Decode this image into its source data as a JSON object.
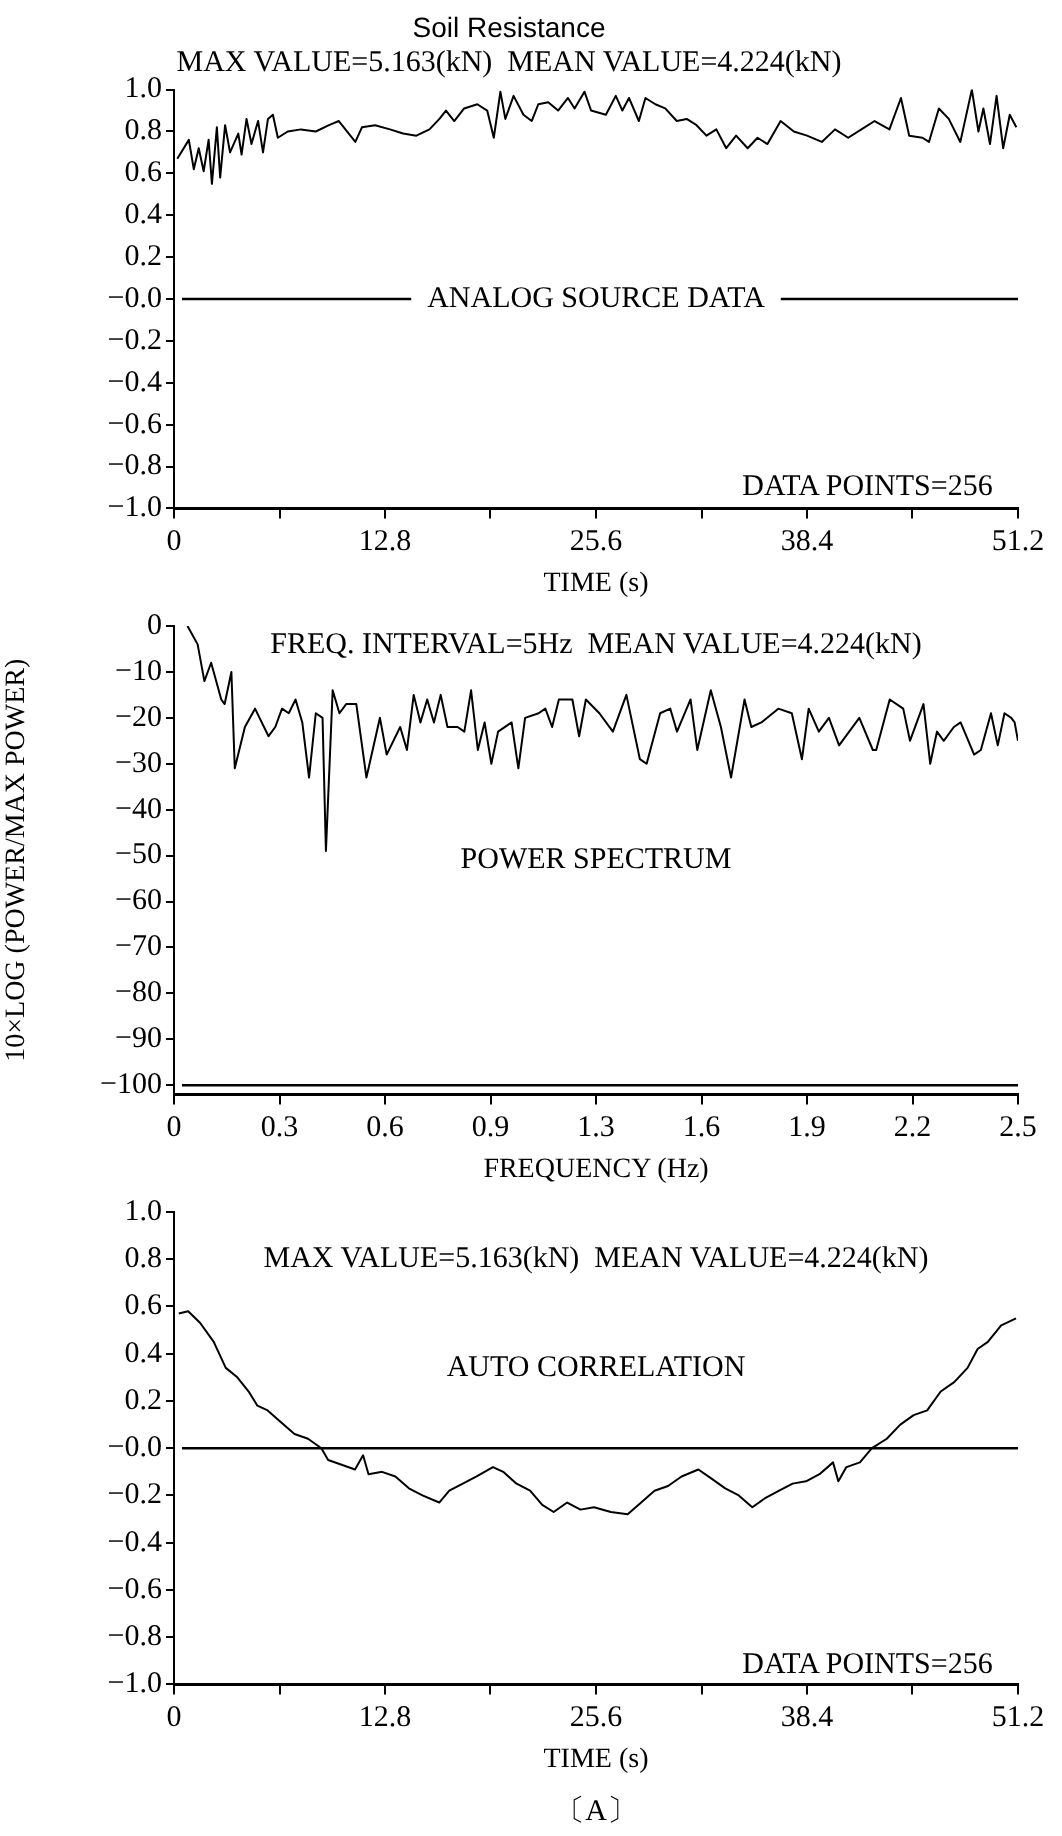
{
  "chart_data": [
    {
      "type": "line",
      "title": "Soil Resistance",
      "subtitle": "MAX VALUE=5.163(kN)  MEAN VALUE=4.224(kN)",
      "xlabel": "TIME (s)",
      "x": [
        0.2,
        0.9,
        1.2,
        1.5,
        1.8,
        2.1,
        2.3,
        2.6,
        2.8,
        3.1,
        3.4,
        3.9,
        4.1,
        4.4,
        4.7,
        5.1,
        5.4,
        5.7,
        6.0,
        6.3,
        6.9,
        7.7,
        8.6,
        9.4,
        10.0,
        11.0,
        11.4,
        12.2,
        13.1,
        13.9,
        14.7,
        15.5,
        16.1,
        16.5,
        17.0,
        17.6,
        18.4,
        19.0,
        19.4,
        19.8,
        20.1,
        20.6,
        21.2,
        21.7,
        22.1,
        22.7,
        23.3,
        23.9,
        24.3,
        24.9,
        25.3,
        26.2,
        26.8,
        27.2,
        27.6,
        28.2,
        28.6,
        29.2,
        29.8,
        30.5,
        31.1,
        31.7,
        32.3,
        32.9,
        33.5,
        34.1,
        34.8,
        35.4,
        36.0,
        36.8,
        37.6,
        38.4,
        39.3,
        40.1,
        40.9,
        41.7,
        42.5,
        43.4,
        44.1,
        44.6,
        45.4,
        45.8,
        46.4,
        47.0,
        47.7,
        48.4,
        48.8,
        49.1,
        49.5,
        49.9,
        50.3,
        50.7,
        51.1
      ],
      "series": [
        {
          "color": "#000000",
          "values": [
            0.67,
            0.76,
            0.62,
            0.72,
            0.61,
            0.76,
            0.55,
            0.82,
            0.58,
            0.83,
            0.7,
            0.79,
            0.69,
            0.86,
            0.74,
            0.85,
            0.7,
            0.86,
            0.88,
            0.77,
            0.8,
            0.81,
            0.8,
            0.83,
            0.85,
            0.75,
            0.82,
            0.83,
            0.81,
            0.79,
            0.78,
            0.81,
            0.86,
            0.9,
            0.85,
            0.91,
            0.93,
            0.9,
            0.77,
            0.99,
            0.86,
            0.97,
            0.88,
            0.85,
            0.93,
            0.94,
            0.9,
            0.96,
            0.91,
            0.99,
            0.9,
            0.88,
            0.97,
            0.9,
            0.96,
            0.85,
            0.96,
            0.93,
            0.91,
            0.85,
            0.86,
            0.83,
            0.78,
            0.81,
            0.72,
            0.78,
            0.72,
            0.77,
            0.74,
            0.85,
            0.8,
            0.78,
            0.75,
            0.81,
            0.77,
            0.81,
            0.85,
            0.81,
            0.96,
            0.78,
            0.77,
            0.75,
            0.91,
            0.86,
            0.75,
            1.0,
            0.8,
            0.91,
            0.74,
            0.97,
            0.72,
            0.88,
            0.82
          ]
        }
      ],
      "xlim": [
        0,
        51.2
      ],
      "xticks": [
        0,
        {
          "value": 6.4,
          "label": null
        },
        12.8,
        {
          "value": 19.2,
          "label": null
        },
        25.6,
        {
          "value": 32,
          "label": null
        },
        38.4,
        {
          "value": 44.8,
          "label": null
        },
        51.2
      ],
      "ylim": [
        -1,
        1
      ],
      "yticks": [
        {
          "value": -1,
          "label": "−1.0"
        },
        {
          "value": -0.8,
          "label": "−0.8"
        },
        {
          "value": -0.6,
          "label": "−0.6"
        },
        {
          "value": -0.4,
          "label": "−0.4"
        },
        {
          "value": -0.2,
          "label": "−0.2"
        },
        {
          "value": 0,
          "label": "−0.0"
        },
        {
          "value": 0.2,
          "label": "0.2"
        },
        {
          "value": 0.4,
          "label": "0.4"
        },
        {
          "value": 0.6,
          "label": "0.6"
        },
        {
          "value": 0.8,
          "label": "0.8"
        },
        {
          "value": 1,
          "label": "1.0"
        }
      ],
      "ref_lines": [
        {
          "axis": "y",
          "value": 0,
          "label": "ANALOG SOURCE DATA"
        }
      ],
      "annotations": [
        "DATA POINTS=256"
      ]
    },
    {
      "type": "line",
      "xlabel": "FREQUENCY (Hz)",
      "ylabel": "10×LOG (POWER/MAX POWER)",
      "x": [
        0.04,
        0.07,
        0.09,
        0.11,
        0.14,
        0.15,
        0.17,
        0.18,
        0.21,
        0.24,
        0.28,
        0.3,
        0.32,
        0.34,
        0.36,
        0.38,
        0.4,
        0.42,
        0.44,
        0.45,
        0.47,
        0.49,
        0.51,
        0.54,
        0.57,
        0.61,
        0.63,
        0.67,
        0.69,
        0.71,
        0.73,
        0.75,
        0.77,
        0.79,
        0.81,
        0.84,
        0.86,
        0.88,
        0.9,
        0.92,
        0.94,
        0.96,
        1.0,
        1.02,
        1.04,
        1.08,
        1.1,
        1.12,
        1.14,
        1.18,
        1.2,
        1.22,
        1.26,
        1.3,
        1.34,
        1.38,
        1.4,
        1.44,
        1.47,
        1.49,
        1.53,
        1.55,
        1.59,
        1.62,
        1.65,
        1.69,
        1.71,
        1.74,
        1.79,
        1.83,
        1.86,
        1.88,
        1.91,
        1.94,
        1.97,
        2.03,
        2.07,
        2.08,
        2.12,
        2.16,
        2.18,
        2.22,
        2.24,
        2.26,
        2.28,
        2.31,
        2.33,
        2.37,
        2.39,
        2.42,
        2.44,
        2.46,
        2.48,
        2.49,
        2.5
      ],
      "series": [
        {
          "color": "#000000",
          "values": [
            0,
            -4,
            -12,
            -8,
            -16,
            -17,
            -10,
            -31,
            -22,
            -18,
            -24,
            -22,
            -18,
            -19,
            -16,
            -21,
            -33,
            -19,
            -20,
            -49,
            -14,
            -19,
            -17,
            -17,
            -33,
            -20,
            -28,
            -22,
            -27,
            -15,
            -21,
            -16,
            -21,
            -15,
            -22,
            -22,
            -23,
            -14,
            -27,
            -21,
            -30,
            -23,
            -21,
            -31,
            -20,
            -19,
            -18,
            -22,
            -16,
            -16,
            -24,
            -16,
            -19,
            -23,
            -15,
            -29,
            -30,
            -19,
            -18,
            -23,
            -16,
            -27,
            -14,
            -22,
            -33,
            -16,
            -22,
            -21,
            -18,
            -19,
            -29,
            -18,
            -23,
            -20,
            -26,
            -20,
            -27,
            -27,
            -16,
            -18,
            -25,
            -17,
            -30,
            -23,
            -25,
            -22,
            -21,
            -28,
            -27,
            -19,
            -26,
            -19,
            -20,
            -21,
            -25
          ]
        }
      ],
      "xlim": [
        0,
        2.5
      ],
      "xticks": [
        0,
        {
          "value": 0.3125,
          "label": "0.3"
        },
        {
          "value": 0.625,
          "label": "0.6"
        },
        {
          "value": 0.9375,
          "label": "0.9"
        },
        {
          "value": 1.25,
          "label": "1.3"
        },
        {
          "value": 1.5625,
          "label": "1.6"
        },
        {
          "value": 1.875,
          "label": "1.9"
        },
        {
          "value": 2.1875,
          "label": "2.2"
        },
        2.5
      ],
      "ylim": [
        -102,
        0
      ],
      "yticks": [
        {
          "value": -100,
          "label": "−100"
        },
        {
          "value": -90,
          "label": "−90"
        },
        {
          "value": -80,
          "label": "−80"
        },
        {
          "value": -70,
          "label": "−70"
        },
        {
          "value": -60,
          "label": "−60"
        },
        {
          "value": -50,
          "label": "−50"
        },
        {
          "value": -40,
          "label": "−40"
        },
        {
          "value": -30,
          "label": "−30"
        },
        {
          "value": -20,
          "label": "−20"
        },
        {
          "value": -10,
          "label": "−10"
        },
        0
      ],
      "ref_lines": [
        {
          "axis": "y",
          "value": -100
        }
      ],
      "annotations": [
        "FREQ. INTERVAL=5Hz  MEAN VALUE=4.224(kN)",
        "POWER SPECTRUM"
      ]
    },
    {
      "type": "line",
      "xlabel": "TIME (s)",
      "x": [
        0.29,
        0.86,
        1.59,
        2.41,
        3.14,
        3.84,
        4.53,
        5.06,
        5.68,
        6.49,
        7.31,
        8.13,
        8.94,
        9.35,
        10.17,
        10.98,
        11.47,
        11.8,
        12.62,
        13.43,
        14.25,
        15.07,
        16.09,
        16.7,
        17.52,
        18.33,
        19.35,
        19.97,
        20.78,
        21.6,
        22.34,
        23.03,
        23.85,
        24.66,
        25.48,
        26.5,
        27.52,
        28.34,
        29.15,
        29.97,
        30.79,
        31.81,
        32.63,
        33.44,
        34.26,
        35.08,
        35.89,
        36.71,
        37.53,
        38.34,
        39.16,
        39.98,
        40.3,
        40.79,
        41.61,
        42.34,
        43.24,
        44.06,
        44.87,
        45.69,
        46.51,
        47.33,
        48.14,
        48.75,
        49.37,
        50.18,
        51.08
      ],
      "series": [
        {
          "color": "#000000",
          "values": [
            0.57,
            0.58,
            0.53,
            0.45,
            0.34,
            0.3,
            0.24,
            0.18,
            0.16,
            0.11,
            0.06,
            0.04,
            0.0,
            -0.05,
            -0.07,
            -0.09,
            -0.03,
            -0.11,
            -0.1,
            -0.12,
            -0.17,
            -0.2,
            -0.23,
            -0.18,
            -0.15,
            -0.12,
            -0.08,
            -0.1,
            -0.15,
            -0.18,
            -0.24,
            -0.27,
            -0.23,
            -0.26,
            -0.25,
            -0.27,
            -0.28,
            -0.23,
            -0.18,
            -0.16,
            -0.12,
            -0.09,
            -0.13,
            -0.17,
            -0.2,
            -0.25,
            -0.21,
            -0.18,
            -0.15,
            -0.14,
            -0.11,
            -0.06,
            -0.14,
            -0.08,
            -0.06,
            0.0,
            0.04,
            0.1,
            0.14,
            0.16,
            0.24,
            0.28,
            0.34,
            0.42,
            0.45,
            0.52,
            0.55
          ]
        }
      ],
      "xlim": [
        0,
        51.2
      ],
      "xticks": [
        0,
        {
          "value": 6.4,
          "label": null
        },
        12.8,
        {
          "value": 19.2,
          "label": null
        },
        25.6,
        {
          "value": 32,
          "label": null
        },
        38.4,
        {
          "value": 44.8,
          "label": null
        },
        51.2
      ],
      "ylim": [
        -1,
        1
      ],
      "yticks": [
        {
          "value": -1,
          "label": "−1.0"
        },
        {
          "value": -0.8,
          "label": "−0.8"
        },
        {
          "value": -0.6,
          "label": "−0.6"
        },
        {
          "value": -0.4,
          "label": "−0.4"
        },
        {
          "value": -0.2,
          "label": "−0.2"
        },
        {
          "value": 0,
          "label": "−0.0"
        },
        {
          "value": 0.2,
          "label": "0.2"
        },
        {
          "value": 0.4,
          "label": "0.4"
        },
        {
          "value": 0.6,
          "label": "0.6"
        },
        {
          "value": 0.8,
          "label": "0.8"
        },
        {
          "value": 1,
          "label": "1.0"
        }
      ],
      "ref_lines": [
        {
          "axis": "y",
          "value": 0
        }
      ],
      "annotations": [
        "MAX VALUE=5.163(kN)  MEAN VALUE=4.224(kN)",
        "AUTO CORRELATION",
        "DATA POINTS=256",
        "〔A〕"
      ]
    }
  ]
}
